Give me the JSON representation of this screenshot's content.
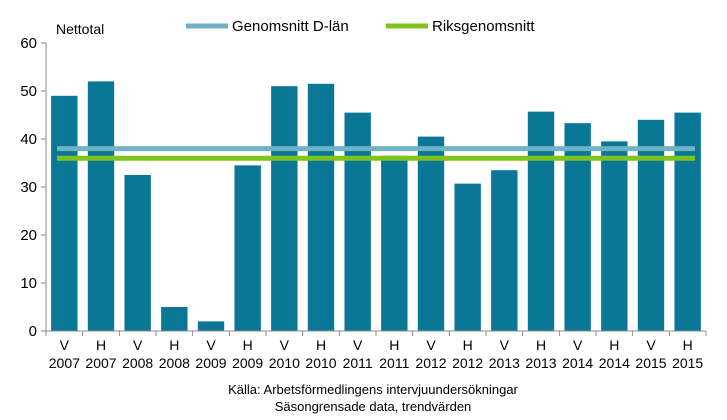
{
  "chart_data": {
    "type": "bar",
    "ylabel": "Nettotal",
    "ylim": [
      0,
      60
    ],
    "yticks": [
      0,
      10,
      20,
      30,
      40,
      50,
      60
    ],
    "categories": [
      [
        "V",
        "2007"
      ],
      [
        "H",
        "2007"
      ],
      [
        "V",
        "2008"
      ],
      [
        "H",
        "2008"
      ],
      [
        "V",
        "2009"
      ],
      [
        "H",
        "2009"
      ],
      [
        "V",
        "2010"
      ],
      [
        "H",
        "2010"
      ],
      [
        "V",
        "2011"
      ],
      [
        "H",
        "2011"
      ],
      [
        "V",
        "2012"
      ],
      [
        "H",
        "2012"
      ],
      [
        "V",
        "2013"
      ],
      [
        "H",
        "2013"
      ],
      [
        "V",
        "2014"
      ],
      [
        "H",
        "2014"
      ],
      [
        "V",
        "2015"
      ],
      [
        "H",
        "2015"
      ]
    ],
    "values": [
      49,
      52,
      32.5,
      5,
      2,
      34.5,
      51,
      51.5,
      45.5,
      36.5,
      40.5,
      30.7,
      33.5,
      45.7,
      43.3,
      39.5,
      44,
      45.5
    ],
    "bar_color": "#0a7796",
    "lines": [
      {
        "name": "Genomsnitt D-län",
        "value": 38,
        "color": "#6fb2c6"
      },
      {
        "name": "Riksgenomsnitt",
        "value": 36,
        "color": "#7fc31c"
      }
    ],
    "grid": false,
    "legend_position": "top",
    "source": [
      "Källa: Arbetsförmedlingens intervjuundersökningar",
      "Säsongrensade data, trendvärden"
    ]
  }
}
